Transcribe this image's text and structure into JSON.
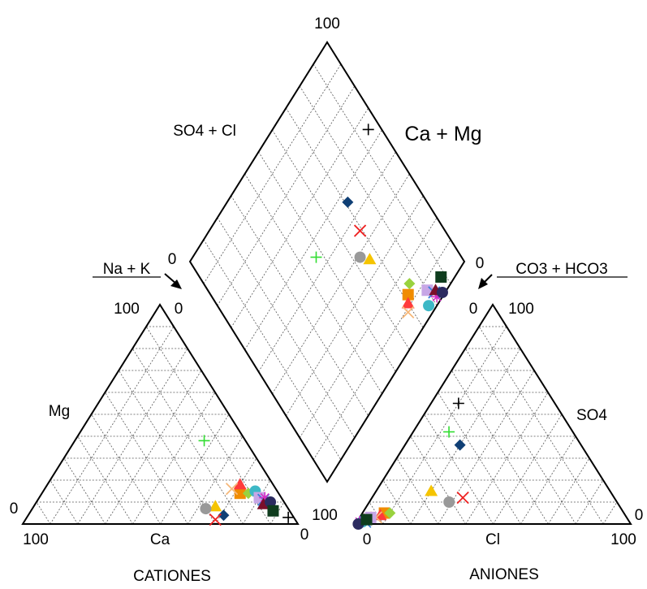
{
  "chart_data": {
    "type": "scatter",
    "diagram": "piper",
    "labels": {
      "diamond_top": "100",
      "diamond_left": "SO4 + Cl",
      "diamond_right": "Ca + Mg",
      "diamond_left_zero": "0",
      "diamond_right_zero": "0",
      "na_k": "Na + K",
      "co3_hco3": "CO3 + HCO3",
      "cation_top_100": "100",
      "cation_top_0": "0",
      "cation_mg": "Mg",
      "cation_left_0": "0",
      "cation_bottom_100": "100",
      "cation_ca": "Ca",
      "cation_bottom_0": "0",
      "cation_title": "CATIONES",
      "anion_top_0": "0",
      "anion_top_100": "100",
      "anion_so4": "SO4",
      "anion_right_0": "0",
      "anion_left_100": "100",
      "anion_bottom_0": "0",
      "anion_cl": "Cl",
      "anion_bottom_100": "100",
      "anion_title": "ANIONES"
    },
    "grid_step": 10,
    "samples": [
      {
        "marker": "plus",
        "color": "#000000",
        "cation": {
          "Ca": 2,
          "Mg": 3
        },
        "anion": {
          "Cl": 10,
          "SO4": 55
        }
      },
      {
        "marker": "plus",
        "color": "#33dd33",
        "cation": {
          "Ca": 15,
          "Mg": 38
        },
        "anion": {
          "Cl": 13,
          "SO4": 42
        }
      },
      {
        "marker": "diamond",
        "color": "#0f3f75",
        "cation": {
          "Ca": 25,
          "Mg": 4
        },
        "anion": {
          "Cl": 20,
          "SO4": 36
        }
      },
      {
        "marker": "cross",
        "color": "#ee2222",
        "cation": {
          "Ca": 29,
          "Mg": 2
        },
        "anion": {
          "Cl": 33,
          "SO4": 12
        }
      },
      {
        "marker": "triangle",
        "color": "#f5c400",
        "cation": {
          "Ca": 26,
          "Mg": 8
        },
        "anion": {
          "Cl": 20,
          "SO4": 15
        }
      },
      {
        "marker": "circle",
        "color": "#999999",
        "cation": {
          "Ca": 30,
          "Mg": 7
        },
        "anion": {
          "Cl": 29,
          "SO4": 10
        }
      },
      {
        "marker": "square",
        "color": "#f08c00",
        "cation": {
          "Ca": 14,
          "Mg": 14
        },
        "anion": {
          "Cl": 8,
          "SO4": 5
        }
      },
      {
        "marker": "triangle",
        "color": "#ff3b3b",
        "cation": {
          "Ca": 12,
          "Mg": 18
        },
        "anion": {
          "Cl": 7,
          "SO4": 4
        }
      },
      {
        "marker": "cross",
        "color": "#f6b87a",
        "cation": {
          "Ca": 16,
          "Mg": 16
        },
        "anion": {
          "Cl": 6,
          "SO4": 3
        }
      },
      {
        "marker": "diamond",
        "color": "#99d23e",
        "cation": {
          "Ca": 11,
          "Mg": 14
        },
        "anion": {
          "Cl": 10,
          "SO4": 5
        }
      },
      {
        "marker": "circle",
        "color": "#3db8c6",
        "cation": {
          "Ca": 8,
          "Mg": 15
        },
        "anion": {
          "Cl": 2,
          "SO4": 1
        }
      },
      {
        "marker": "square",
        "color": "#c7a6e6",
        "cation": {
          "Ca": 8,
          "Mg": 12
        },
        "anion": {
          "Cl": 4,
          "SO4": 3
        }
      },
      {
        "marker": "cross",
        "color": "#3a7fd9",
        "cation": {
          "Ca": 7,
          "Mg": 11
        },
        "anion": {
          "Cl": 3,
          "SO4": 1
        }
      },
      {
        "marker": "asterisk",
        "color": "#d42fc4",
        "cation": {
          "Ca": 6,
          "Mg": 12
        },
        "anion": {
          "Cl": 1,
          "SO4": 1
        }
      },
      {
        "marker": "triangle",
        "color": "#7a0f2a",
        "cation": {
          "Ca": 8,
          "Mg": 9
        },
        "anion": {
          "Cl": 2,
          "SO4": 2
        }
      },
      {
        "marker": "circle",
        "color": "#2b2b60",
        "cation": {
          "Ca": 5,
          "Mg": 10
        },
        "anion": {
          "Cl": 1,
          "SO4": 0
        }
      },
      {
        "marker": "square",
        "color": "#0f3d1e",
        "cation": {
          "Ca": 6,
          "Mg": 6
        },
        "anion": {
          "Cl": 3,
          "SO4": 2
        }
      }
    ]
  }
}
